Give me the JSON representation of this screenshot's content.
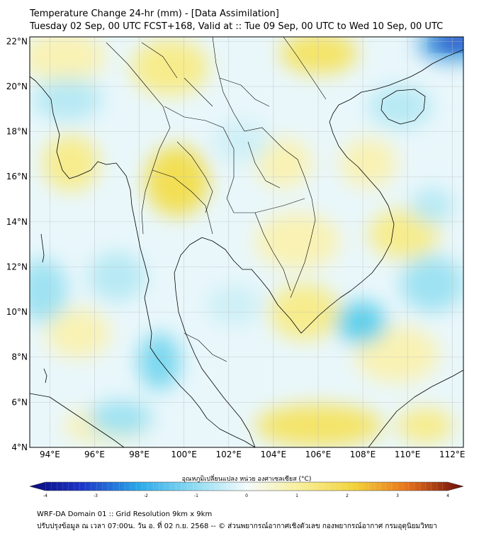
{
  "title_line1": "Temperature Change 24-hr (mm) - [Data Assimilation]",
  "title_line2": "Tuesday 02 Sep, 00 UTC FCST+168, Valid at :: Tue 09 Sep, 00 UTC to Wed 10 Sep, 00 UTC",
  "map": {
    "lat_ticks": [
      "22°N",
      "20°N",
      "18°N",
      "16°N",
      "14°N",
      "12°N",
      "10°N",
      "8°N",
      "6°N",
      "4°N"
    ],
    "lon_ticks": [
      "94°E",
      "96°E",
      "98°E",
      "100°E",
      "102°E",
      "104°E",
      "106°E",
      "108°E",
      "110°E",
      "112°E"
    ],
    "lat_range": [
      4,
      22.2
    ],
    "lon_range": [
      93.1,
      112.5
    ],
    "gridlines": true
  },
  "colorbar": {
    "label": "อุณหภูมิเปลี่ยนแปลง หน่วย องศาเซลเซียส (°C)",
    "ticks": [
      "-4",
      "-3",
      "-2",
      "-1",
      "0",
      "1",
      "2",
      "3",
      "4"
    ],
    "range": [
      -4,
      4
    ]
  },
  "footer_line1": "WRF-DA Domain 01 :: Grid Resolution 9km x 9km",
  "footer_line2": "ปรับปรุงข้อมูล ณ เวลา 07:00น. วัน อ. ที่ 02 ก.ย. 2568 -- © ส่วนพยากรณ์อากาศเชิงตัวเลข กองพยากรณ์อากาศ กรมอุตุนิยมวิทยา",
  "colors": {
    "neutral": "#e9f7fb",
    "warm_light": "#f9f2b4",
    "warm_mid": "#f4e469",
    "cool_light": "#b7e9f4",
    "cool_mid": "#5fd0ec",
    "cold": "#1f3bc2",
    "border": "#000000",
    "grid": "#bbbbbb"
  }
}
